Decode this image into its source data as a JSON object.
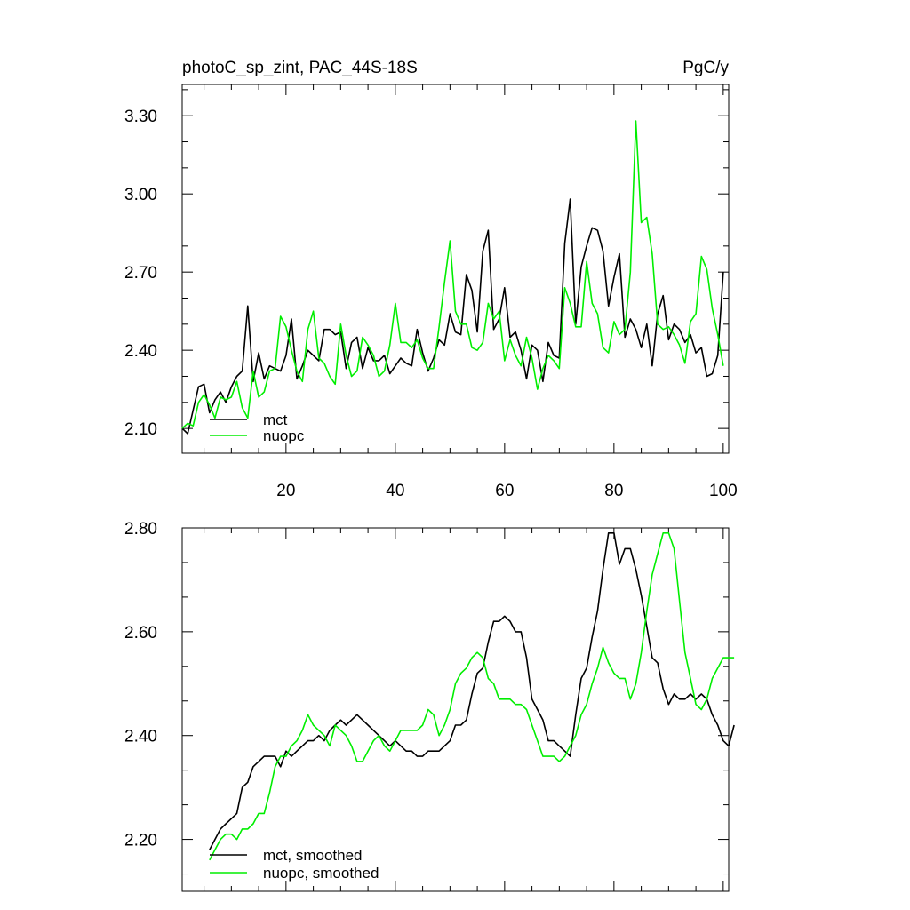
{
  "chart_data": [
    {
      "type": "line",
      "title": "photoC_sp_zint, PAC_44S-18S",
      "units": "PgC/y",
      "xlim": [
        1,
        101
      ],
      "ylim": [
        2.005,
        3.42
      ],
      "x_ticks": [
        20,
        40,
        60,
        80,
        100
      ],
      "y_ticks": [
        2.1,
        2.4,
        2.7,
        3.0,
        3.3
      ],
      "y_tick_labels": [
        "2.10",
        "2.40",
        "2.70",
        "3.00",
        "3.30"
      ],
      "legend_placement": "lower-left",
      "colors": {
        "mct": "#000000",
        "nuopc": "#00ee00"
      },
      "series": [
        {
          "name": "mct",
          "color": "#000000",
          "x_start": 1,
          "values": [
            2.1,
            2.08,
            2.17,
            2.26,
            2.27,
            2.16,
            2.21,
            2.24,
            2.2,
            2.26,
            2.3,
            2.32,
            2.57,
            2.28,
            2.39,
            2.29,
            2.34,
            2.33,
            2.32,
            2.38,
            2.52,
            2.29,
            2.34,
            2.4,
            2.38,
            2.36,
            2.48,
            2.48,
            2.46,
            2.47,
            2.33,
            2.43,
            2.45,
            2.33,
            2.41,
            2.36,
            2.36,
            2.38,
            2.31,
            2.34,
            2.37,
            2.35,
            2.34,
            2.48,
            2.39,
            2.32,
            2.37,
            2.44,
            2.42,
            2.54,
            2.47,
            2.46,
            2.69,
            2.63,
            2.47,
            2.78,
            2.86,
            2.48,
            2.52,
            2.64,
            2.45,
            2.47,
            2.4,
            2.29,
            2.42,
            2.4,
            2.28,
            2.43,
            2.38,
            2.37,
            2.81,
            2.98,
            2.5,
            2.72,
            2.8,
            2.87,
            2.86,
            2.78,
            2.57,
            2.68,
            2.77,
            2.45,
            2.52,
            2.48,
            2.41,
            2.5,
            2.34,
            2.54,
            2.61,
            2.44,
            2.5,
            2.48,
            2.43,
            2.46,
            2.39,
            2.41,
            2.3,
            2.31,
            2.38,
            2.7
          ]
        },
        {
          "name": "nuopc",
          "color": "#00ee00",
          "x_start": 1,
          "values": [
            2.1,
            2.12,
            2.11,
            2.2,
            2.23,
            2.19,
            2.14,
            2.22,
            2.21,
            2.22,
            2.28,
            2.18,
            2.14,
            2.32,
            2.22,
            2.24,
            2.32,
            2.33,
            2.53,
            2.49,
            2.4,
            2.32,
            2.28,
            2.48,
            2.55,
            2.37,
            2.35,
            2.3,
            2.27,
            2.5,
            2.38,
            2.3,
            2.32,
            2.45,
            2.42,
            2.38,
            2.3,
            2.32,
            2.42,
            2.58,
            2.43,
            2.43,
            2.41,
            2.44,
            2.37,
            2.33,
            2.33,
            2.49,
            2.66,
            2.82,
            2.55,
            2.5,
            2.5,
            2.41,
            2.4,
            2.43,
            2.58,
            2.52,
            2.55,
            2.36,
            2.44,
            2.38,
            2.34,
            2.45,
            2.37,
            2.25,
            2.33,
            2.38,
            2.36,
            2.33,
            2.64,
            2.58,
            2.49,
            2.49,
            2.74,
            2.58,
            2.54,
            2.41,
            2.39,
            2.51,
            2.46,
            2.48,
            2.7,
            3.28,
            2.89,
            2.91,
            2.77,
            2.5,
            2.48,
            2.49,
            2.46,
            2.42,
            2.35,
            2.51,
            2.54,
            2.76,
            2.71,
            2.56,
            2.46,
            2.34
          ]
        }
      ]
    },
    {
      "type": "line",
      "xlim": [
        1,
        101
      ],
      "ylim": [
        2.1,
        2.8
      ],
      "x_ticks": [
        20,
        40,
        60,
        80,
        100
      ],
      "y_ticks": [
        2.2,
        2.4,
        2.6,
        2.8
      ],
      "y_tick_labels": [
        "2.20",
        "2.40",
        "2.60",
        "2.80"
      ],
      "legend_placement": "lower-left",
      "series": [
        {
          "name": "mct, smoothed",
          "color": "#000000",
          "x_start": 6,
          "values": [
            2.18,
            2.2,
            2.22,
            2.23,
            2.24,
            2.25,
            2.3,
            2.31,
            2.34,
            2.35,
            2.36,
            2.36,
            2.36,
            2.34,
            2.37,
            2.36,
            2.37,
            2.38,
            2.39,
            2.39,
            2.4,
            2.39,
            2.41,
            2.42,
            2.43,
            2.42,
            2.43,
            2.44,
            2.43,
            2.42,
            2.41,
            2.4,
            2.39,
            2.38,
            2.39,
            2.38,
            2.37,
            2.37,
            2.36,
            2.36,
            2.37,
            2.37,
            2.37,
            2.38,
            2.39,
            2.42,
            2.42,
            2.43,
            2.48,
            2.52,
            2.53,
            2.58,
            2.62,
            2.62,
            2.63,
            2.62,
            2.6,
            2.6,
            2.55,
            2.47,
            2.45,
            2.43,
            2.39,
            2.39,
            2.38,
            2.37,
            2.36,
            2.44,
            2.51,
            2.53,
            2.59,
            2.64,
            2.72,
            2.79,
            2.79,
            2.73,
            2.76,
            2.76,
            2.72,
            2.67,
            2.61,
            2.55,
            2.54,
            2.49,
            2.46,
            2.48,
            2.47,
            2.47,
            2.48,
            2.47,
            2.48,
            2.47,
            2.44,
            2.42,
            2.39,
            2.38,
            2.42
          ]
        },
        {
          "name": "nuopc, smoothed",
          "color": "#00ee00",
          "x_start": 6,
          "values": [
            2.16,
            2.18,
            2.2,
            2.21,
            2.21,
            2.2,
            2.22,
            2.22,
            2.23,
            2.25,
            2.25,
            2.29,
            2.34,
            2.36,
            2.36,
            2.38,
            2.39,
            2.41,
            2.44,
            2.42,
            2.41,
            2.4,
            2.38,
            2.42,
            2.41,
            2.4,
            2.38,
            2.35,
            2.35,
            2.37,
            2.39,
            2.4,
            2.38,
            2.37,
            2.39,
            2.41,
            2.41,
            2.41,
            2.41,
            2.42,
            2.45,
            2.44,
            2.4,
            2.42,
            2.45,
            2.5,
            2.52,
            2.53,
            2.55,
            2.56,
            2.55,
            2.51,
            2.5,
            2.47,
            2.47,
            2.47,
            2.46,
            2.46,
            2.45,
            2.42,
            2.39,
            2.36,
            2.36,
            2.36,
            2.35,
            2.36,
            2.38,
            2.4,
            2.44,
            2.46,
            2.5,
            2.53,
            2.57,
            2.54,
            2.52,
            2.51,
            2.51,
            2.47,
            2.5,
            2.56,
            2.64,
            2.71,
            2.75,
            2.79,
            2.79,
            2.76,
            2.66,
            2.56,
            2.51,
            2.46,
            2.45,
            2.47,
            2.51,
            2.53,
            2.55,
            2.55,
            2.55
          ]
        }
      ]
    }
  ]
}
